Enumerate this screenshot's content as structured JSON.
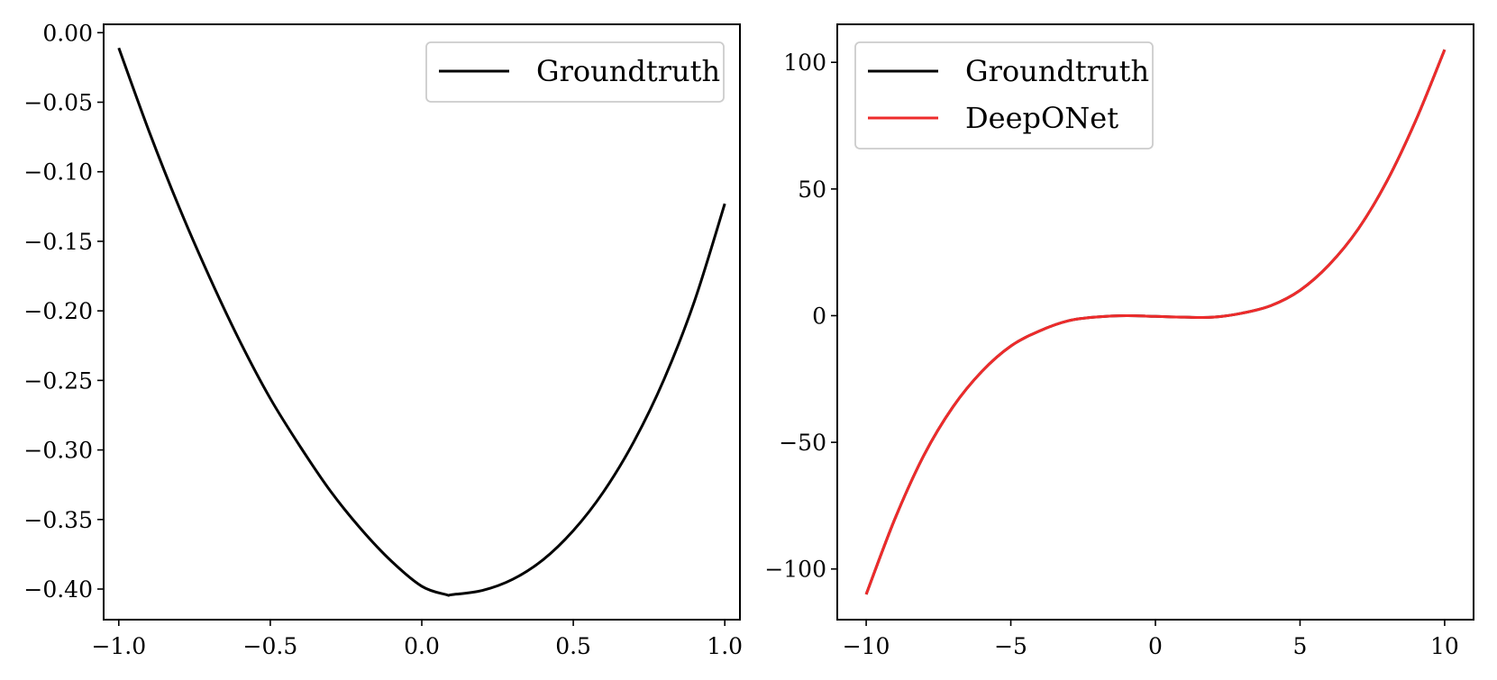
{
  "chart_data": [
    {
      "type": "line",
      "title": "",
      "xlabel": "",
      "ylabel": "",
      "xlim": [
        -1.05,
        1.05
      ],
      "ylim": [
        -0.422,
        0.006
      ],
      "xticks": [
        -1.0,
        -0.5,
        0.0,
        0.5,
        1.0
      ],
      "xtick_labels": [
        "−1.0",
        "−0.5",
        "0.0",
        "0.5",
        "1.0"
      ],
      "yticks": [
        0.0,
        -0.05,
        -0.1,
        -0.15,
        -0.2,
        -0.25,
        -0.3,
        -0.35,
        -0.4
      ],
      "ytick_labels": [
        "0.00",
        "−0.05",
        "−0.10",
        "−0.15",
        "−0.20",
        "−0.25",
        "−0.30",
        "−0.35",
        "−0.40"
      ],
      "grid": false,
      "legend_position": "top-right",
      "series": [
        {
          "name": "Groundtruth",
          "color": "#000000",
          "x": [
            -1.0,
            -0.9,
            -0.8,
            -0.7,
            -0.6,
            -0.5,
            -0.4,
            -0.3,
            -0.2,
            -0.1,
            0.0,
            0.08,
            0.1,
            0.2,
            0.3,
            0.4,
            0.5,
            0.6,
            0.7,
            0.8,
            0.9,
            1.0
          ],
          "y": [
            -0.011,
            -0.071,
            -0.126,
            -0.176,
            -0.222,
            -0.263,
            -0.298,
            -0.33,
            -0.357,
            -0.38,
            -0.398,
            -0.404,
            -0.404,
            -0.401,
            -0.393,
            -0.379,
            -0.358,
            -0.33,
            -0.294,
            -0.249,
            -0.193,
            -0.123
          ]
        }
      ]
    },
    {
      "type": "line",
      "title": "",
      "xlabel": "",
      "ylabel": "",
      "xlim": [
        -11.0,
        11.0
      ],
      "ylim": [
        -120,
        115
      ],
      "xticks": [
        -10,
        -5,
        0,
        5,
        10
      ],
      "xtick_labels": [
        "−10",
        "−5",
        "0",
        "5",
        "10"
      ],
      "yticks": [
        100,
        50,
        0,
        -50,
        -100
      ],
      "ytick_labels": [
        "100",
        "50",
        "0",
        "−50",
        "−100"
      ],
      "grid": false,
      "legend_position": "top-left",
      "series": [
        {
          "name": "Groundtruth",
          "color": "#000000",
          "x": [
            -10,
            -9,
            -8,
            -7,
            -6,
            -5,
            -4,
            -3,
            -2,
            -1,
            0,
            1,
            2,
            3,
            4,
            5,
            6,
            7,
            8,
            9,
            10
          ],
          "y": [
            -110,
            -80,
            -55,
            -36,
            -22,
            -12,
            -6,
            -2,
            -0.5,
            0,
            -0.3,
            -0.6,
            -0.6,
            1.0,
            4,
            10,
            20,
            34,
            53,
            77,
            105
          ]
        },
        {
          "name": "DeepONet",
          "color": "#ee2b2b",
          "x": [
            -10,
            -9,
            -8,
            -7,
            -6,
            -5,
            -4,
            -3,
            -2,
            -1,
            0,
            1,
            2,
            3,
            4,
            5,
            6,
            7,
            8,
            9,
            10
          ],
          "y": [
            -110,
            -80,
            -55,
            -36,
            -22,
            -12,
            -6,
            -2,
            -0.5,
            0,
            -0.3,
            -0.6,
            -0.6,
            1.0,
            4,
            10,
            20,
            34,
            53,
            77,
            105
          ]
        }
      ]
    }
  ]
}
